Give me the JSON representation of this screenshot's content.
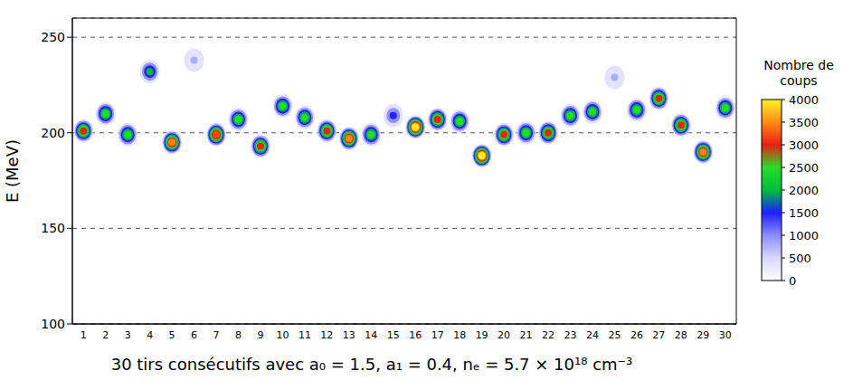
{
  "chart_data": {
    "type": "scatter",
    "y_label": "E (MeV)",
    "caption": "30 tirs consécutifs avec a₀ = 1.5, a₁ = 0.4, nₑ = 5.7 × 10¹⁸ cm⁻³",
    "x": [
      1,
      2,
      3,
      4,
      5,
      6,
      7,
      8,
      9,
      10,
      11,
      12,
      13,
      14,
      15,
      16,
      17,
      18,
      19,
      20,
      21,
      22,
      23,
      24,
      25,
      26,
      27,
      28,
      29,
      30
    ],
    "values": [
      201,
      210,
      199,
      232,
      195,
      238,
      199,
      207,
      193,
      214,
      208,
      201,
      197,
      199,
      209,
      203,
      207,
      206,
      188,
      199,
      200,
      200,
      209,
      211,
      229,
      212,
      218,
      204,
      190,
      213
    ],
    "counts": [
      3000,
      2500,
      2500,
      2000,
      3500,
      800,
      3200,
      2500,
      3000,
      2500,
      2500,
      3000,
      3500,
      2500,
      1500,
      4000,
      3000,
      2500,
      4000,
      3000,
      2500,
      3000,
      2500,
      2500,
      800,
      2500,
      3000,
      3000,
      3500,
      2500
    ],
    "xlim": [
      0.5,
      30.5
    ],
    "xticks": [
      1,
      2,
      3,
      4,
      5,
      6,
      7,
      8,
      9,
      10,
      11,
      12,
      13,
      14,
      15,
      16,
      17,
      18,
      19,
      20,
      21,
      22,
      23,
      24,
      25,
      26,
      27,
      28,
      29,
      30
    ],
    "ylim": [
      100,
      260
    ],
    "yticks": [
      100,
      150,
      200,
      250
    ],
    "grid": true,
    "colorbar": {
      "label": "Nombre de coups",
      "range": [
        0,
        4000
      ],
      "ticks": [
        0,
        500,
        1000,
        1500,
        2000,
        2500,
        3000,
        3500,
        4000
      ]
    }
  }
}
